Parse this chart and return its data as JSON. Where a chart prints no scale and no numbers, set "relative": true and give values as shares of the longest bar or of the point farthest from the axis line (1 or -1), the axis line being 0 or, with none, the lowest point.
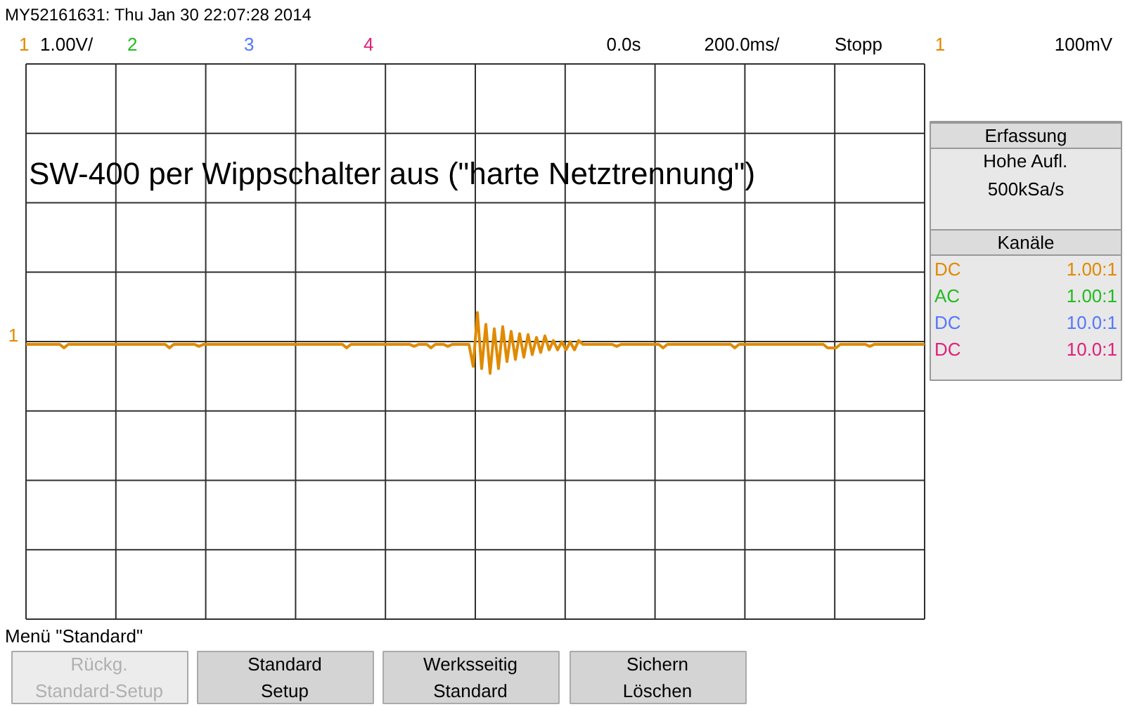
{
  "chart_data": {
    "type": "line",
    "title": "SW-400 per Wippschalter aus (\"harte Netztrennung\")",
    "subtitle": "MY52161631: Thu Jan 30 22:07:28 2014",
    "relative": true,
    "grid": true,
    "categories": [
      null,
      null,
      null,
      null,
      null,
      null,
      null,
      null,
      null,
      null,
      null,
      null,
      null,
      null,
      null,
      null,
      null,
      null,
      null,
      null,
      null,
      null,
      null,
      null,
      null,
      null,
      null,
      null,
      null,
      null,
      null,
      null,
      null,
      null,
      null,
      null,
      null,
      null,
      null,
      null,
      null,
      null,
      null,
      null,
      null,
      null,
      null,
      null,
      null,
      null,
      null,
      null,
      null,
      null,
      null,
      null,
      null,
      null,
      null,
      null,
      null,
      null,
      null,
      null,
      null,
      null,
      null,
      null,
      null,
      null,
      null,
      null,
      null,
      null,
      null,
      null,
      null,
      null,
      null,
      null,
      null,
      null,
      null,
      null,
      null,
      null,
      null,
      null,
      null,
      null,
      null,
      null,
      null,
      null,
      null,
      null,
      null,
      null,
      null,
      null,
      null,
      null,
      null,
      null,
      null,
      null,
      null,
      null,
      null,
      null,
      null,
      null,
      null,
      null,
      null,
      null,
      null,
      null,
      null,
      null,
      null,
      null,
      null,
      null,
      null,
      null,
      null,
      null,
      null,
      null,
      null,
      null,
      null,
      null,
      null,
      null,
      null,
      null,
      null,
      null,
      null,
      null,
      null,
      null,
      null,
      null,
      null,
      null,
      null,
      null,
      null,
      null,
      null,
      null,
      null,
      null,
      null,
      null,
      null,
      null,
      null,
      null,
      null,
      null,
      null,
      null,
      null,
      null,
      null,
      null,
      null,
      null,
      null,
      null,
      null,
      null,
      null,
      null,
      null,
      null,
      null,
      null,
      null,
      null,
      null,
      null,
      null,
      null,
      null,
      null,
      null,
      null,
      null,
      null,
      null,
      null,
      null,
      null,
      null,
      null,
      null,
      null,
      null,
      null,
      null,
      null,
      null,
      null,
      null,
      null,
      null,
      null,
      null,
      null
    ],
    "series": [
      {
        "color": "#e08a00",
        "values": [
          -0.09,
          -0.09,
          -0.09,
          -0.09,
          -0.09,
          -0.09,
          -0.09,
          -0.09,
          -0.09,
          -0.2,
          -0.09,
          -0.09,
          -0.09,
          -0.09,
          -0.09,
          -0.09,
          -0.09,
          -0.09,
          -0.09,
          -0.09,
          -0.09,
          -0.09,
          -0.09,
          -0.09,
          -0.09,
          -0.09,
          -0.09,
          -0.09,
          -0.09,
          -0.09,
          -0.09,
          -0.09,
          -0.09,
          -0.09,
          -0.2,
          -0.09,
          -0.09,
          -0.09,
          -0.09,
          -0.09,
          -0.09,
          -0.15,
          -0.09,
          -0.09,
          -0.09,
          -0.09,
          -0.09,
          -0.09,
          -0.09,
          -0.09,
          -0.09,
          -0.09,
          -0.09,
          -0.09,
          -0.09,
          -0.09,
          -0.09,
          -0.09,
          -0.09,
          -0.09,
          -0.09,
          -0.09,
          -0.09,
          -0.09,
          -0.09,
          -0.09,
          -0.09,
          -0.09,
          -0.09,
          -0.09,
          -0.09,
          -0.09,
          -0.09,
          -0.09,
          -0.09,
          -0.09,
          -0.2,
          -0.09,
          -0.09,
          -0.09,
          -0.09,
          -0.09,
          -0.09,
          -0.09,
          -0.09,
          -0.09,
          -0.09,
          -0.09,
          -0.09,
          -0.09,
          -0.09,
          -0.09,
          -0.15,
          -0.09,
          -0.09,
          -0.09,
          -0.2,
          -0.09,
          -0.09,
          -0.09,
          -0.15,
          -0.09,
          -0.09,
          -0.09,
          -0.09,
          -0.09,
          -0.78,
          0.91,
          -0.85,
          0.54,
          -1.0,
          0.4,
          -0.85,
          0.47,
          -0.63,
          0.32,
          -0.56,
          0.25,
          -0.49,
          0.22,
          -0.41,
          0.13,
          -0.34,
          0.18,
          -0.26,
          0.03,
          -0.26,
          -0.01,
          -0.26,
          -0.01,
          -0.26,
          0.03,
          -0.09,
          -0.09,
          -0.09,
          -0.09,
          -0.09,
          -0.09,
          -0.09,
          -0.09,
          -0.15,
          -0.09,
          -0.09,
          -0.09,
          -0.09,
          -0.09,
          -0.09,
          -0.09,
          -0.09,
          -0.09,
          -0.09,
          -0.2,
          -0.09,
          -0.09,
          -0.09,
          -0.09,
          -0.09,
          -0.09,
          -0.09,
          -0.09,
          -0.09,
          -0.09,
          -0.09,
          -0.09,
          -0.09,
          -0.09,
          -0.09,
          -0.09,
          -0.2,
          -0.09,
          -0.09,
          -0.09,
          -0.09,
          -0.09,
          -0.09,
          -0.09,
          -0.09,
          -0.09,
          -0.09,
          -0.09,
          -0.09,
          -0.09,
          -0.09,
          -0.09,
          -0.09,
          -0.09,
          -0.09,
          -0.09,
          -0.09,
          -0.09,
          -0.2,
          -0.2,
          -0.2,
          -0.09,
          -0.09,
          -0.09,
          -0.09,
          -0.09,
          -0.09,
          -0.09,
          -0.15,
          -0.09,
          -0.09,
          -0.09,
          -0.09,
          -0.09,
          -0.09,
          -0.09,
          -0.09,
          -0.09,
          -0.09,
          -0.09,
          -0.09,
          -0.09
        ]
      }
    ],
    "annotations": [
      "1",
      "1.00V/",
      "2",
      "3",
      "4",
      "0.0s",
      "200.0ms/",
      "Stopp",
      "1",
      "100mV",
      "1",
      "Erfassung",
      "Hohe Aufl.",
      "500kSa/s",
      "Kanäle",
      "DC",
      "1.00:1",
      "AC",
      "1.00:1",
      "DC",
      "10.0:1",
      "DC",
      "10.0:1",
      "Menü \"Standard\"",
      "Rückg.",
      "Standard-Setup",
      "Standard",
      "Setup",
      "Werksseitig",
      "Standard",
      "Sichern",
      "Löschen"
    ]
  }
}
